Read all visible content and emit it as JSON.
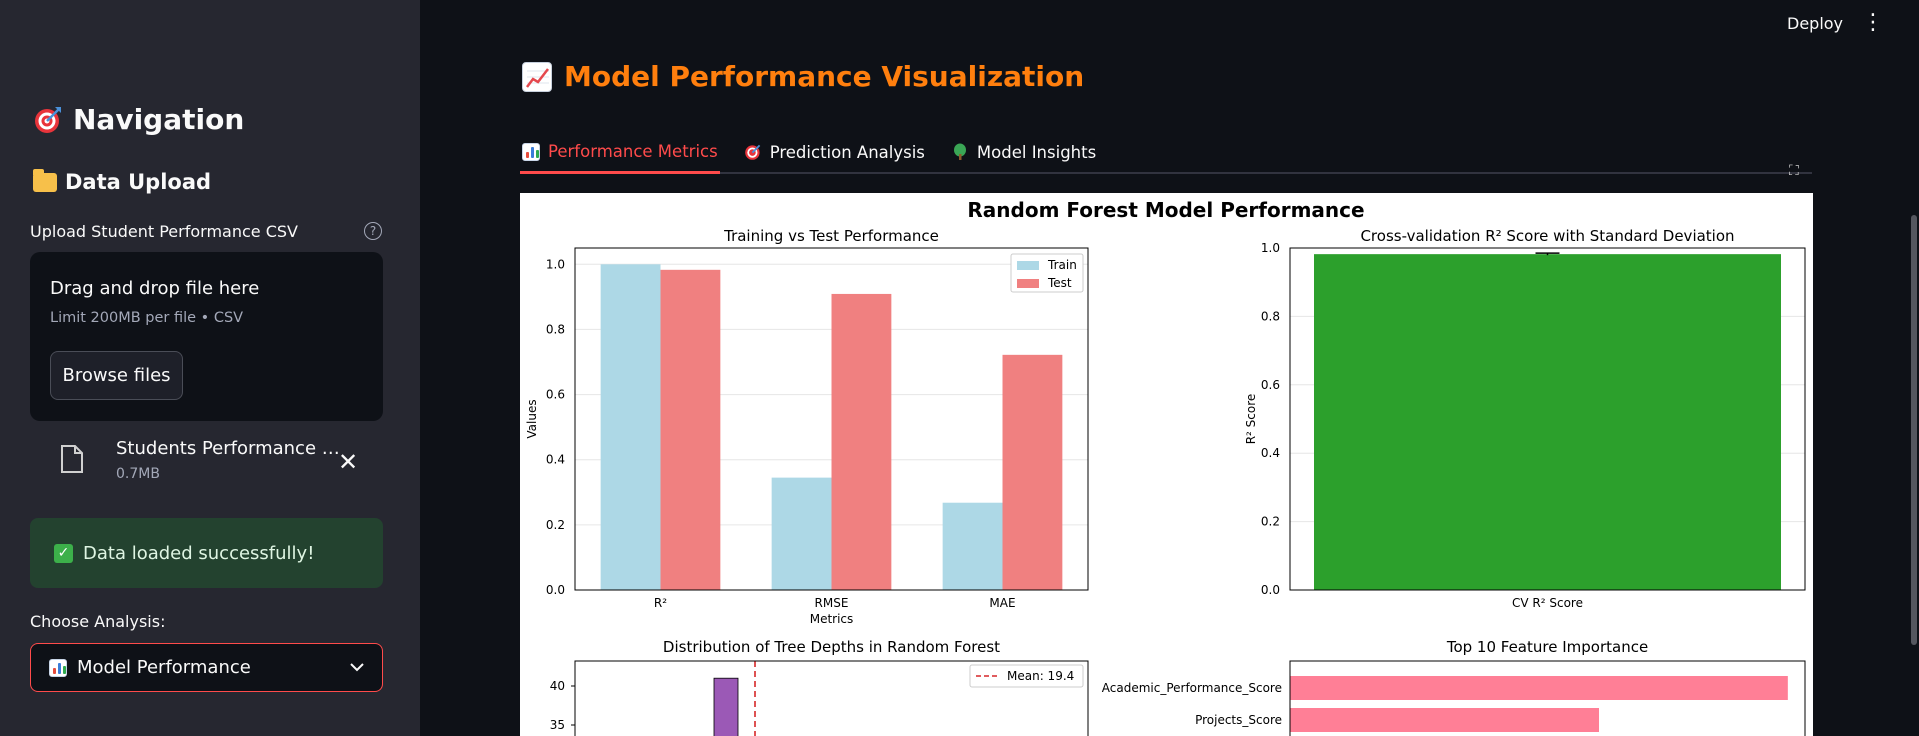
{
  "header": {
    "deploy_label": "Deploy",
    "menu_icon": "kebab-menu-icon"
  },
  "sidebar": {
    "title": "Navigation",
    "title_icon": "target-icon",
    "upload_section": "Data Upload",
    "upload_label": "Upload Student Performance CSV",
    "dropzone_title": "Drag and drop file here",
    "dropzone_sub": "Limit 200MB per file • CSV",
    "browse_label": "Browse files",
    "file": {
      "name": "Students Performance Dataset.csv",
      "size": "0.7MB"
    },
    "success_message": "Data loaded successfully!",
    "choose_label": "Choose Analysis:",
    "selected_analysis": "Model Performance"
  },
  "main": {
    "title": "Model Performance Visualization",
    "tabs": [
      {
        "label": "Performance Metrics",
        "icon": "bar-chart-icon",
        "active": true
      },
      {
        "label": "Prediction Analysis",
        "icon": "target-icon",
        "active": false
      },
      {
        "label": "Model Insights",
        "icon": "tree-icon",
        "active": false
      }
    ]
  },
  "figure": {
    "suptitle": "Random Forest Model Performance"
  },
  "chart_data": [
    {
      "type": "bar",
      "title": "Training vs Test Performance",
      "xlabel": "Metrics",
      "ylabel": "Values",
      "categories": [
        "R²",
        "RMSE",
        "MAE"
      ],
      "series": [
        {
          "name": "Train",
          "values": [
            1.0,
            0.345,
            0.268
          ],
          "color": "#add8e6"
        },
        {
          "name": "Test",
          "values": [
            0.983,
            0.909,
            0.722
          ],
          "color": "#f08080"
        }
      ],
      "ylim": [
        0,
        1.05
      ],
      "yticks": [
        "0.0",
        "0.2",
        "0.4",
        "0.6",
        "0.8",
        "1.0"
      ],
      "grid": true,
      "legend": "top-right"
    },
    {
      "type": "bar",
      "title": "Cross-validation R² Score with Standard Deviation",
      "xlabel": "",
      "ylabel": "R² Score",
      "categories": [
        "CV R² Score"
      ],
      "values": [
        0.982
      ],
      "error": 0.003,
      "color": "#2ca02c",
      "ylim": [
        0,
        1.0
      ],
      "yticks": [
        "0.0",
        "0.2",
        "0.4",
        "0.6",
        "0.8",
        "1.0"
      ],
      "grid": true
    },
    {
      "type": "bar",
      "title": "Distribution of Tree Depths in Random Forest",
      "mean_line": {
        "value": 19.4,
        "label": "Mean: 19.4",
        "color": "#d62728"
      },
      "visible_yticks": [
        "40",
        "35"
      ],
      "visible_bar": {
        "value": 41,
        "color": "#9b59b6"
      },
      "legend": "top-right"
    },
    {
      "type": "bar",
      "orientation": "horizontal",
      "title": "Top 10 Feature Importance",
      "categories": [
        "Academic_Performance_Score",
        "Projects_Score"
      ],
      "values": [
        0.58,
        0.36
      ],
      "color": "#ff7f96"
    }
  ]
}
